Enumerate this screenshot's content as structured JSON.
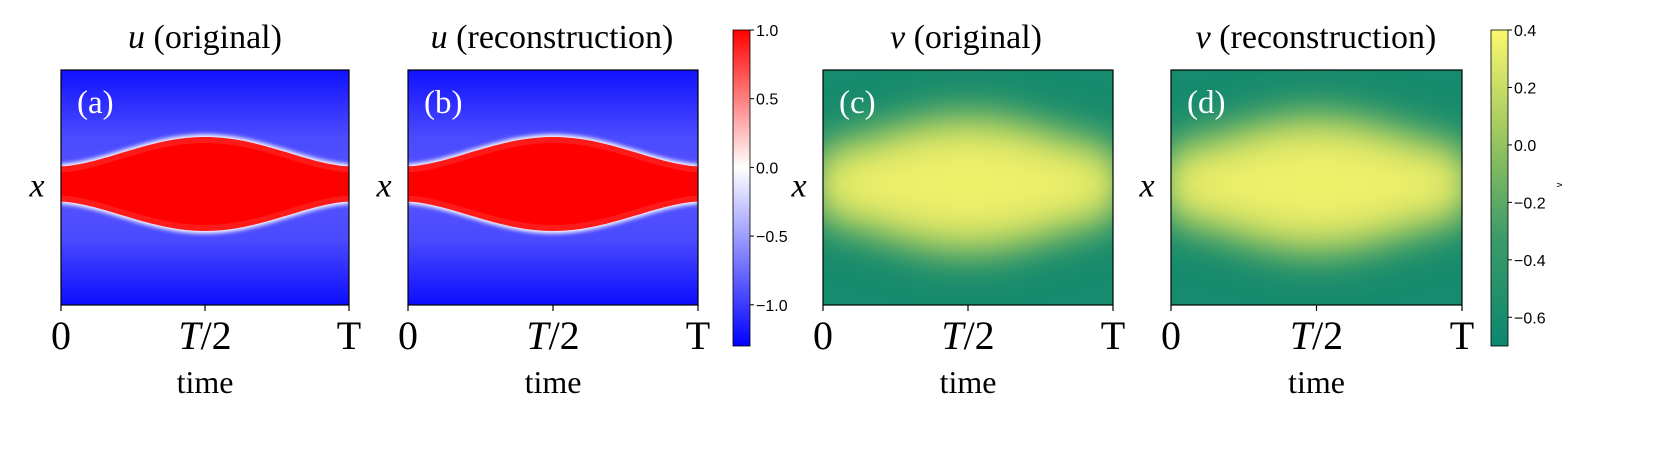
{
  "chart_data": [
    {
      "type": "heatmap",
      "panel": "a",
      "title_var": "u",
      "title_rest": " (original)",
      "panel_label": "(a)",
      "field": "u",
      "xlabel": "time",
      "ylabel": "x",
      "xticks": [
        "0",
        "T/2",
        "T"
      ],
      "colorbar": "u",
      "description_values": {
        "background": -1.1,
        "band": 1.0
      }
    },
    {
      "type": "heatmap",
      "panel": "b",
      "title_var": "u",
      "title_rest": " (reconstruction)",
      "panel_label": "(b)",
      "field": "u",
      "xlabel": "time",
      "ylabel": "x",
      "xticks": [
        "0",
        "T/2",
        "T"
      ],
      "colorbar": "u"
    },
    {
      "type": "heatmap",
      "panel": "c",
      "title_var": "v",
      "title_rest": " (original)",
      "panel_label": "(c)",
      "field": "v",
      "xlabel": "time",
      "ylabel": "x",
      "xticks": [
        "0",
        "T/2",
        "T"
      ],
      "colorbar": "v"
    },
    {
      "type": "heatmap",
      "panel": "d",
      "title_var": "v",
      "title_rest": " (reconstruction)",
      "panel_label": "(d)",
      "field": "v",
      "xlabel": "time",
      "ylabel": "x",
      "xticks": [
        "0",
        "T/2",
        "T"
      ],
      "colorbar": "v"
    }
  ],
  "colorbars": {
    "u": {
      "range": [
        -1.3,
        1.0
      ],
      "ticks": [
        1.0,
        0.5,
        0.0,
        -0.5,
        -1.0
      ],
      "tick_labels": [
        "1.0",
        "0.5",
        "0.0",
        "−0.5",
        "−1.0"
      ],
      "colors": {
        "low": "#0000ff",
        "mid": "#ffffff",
        "high": "#ff0000"
      },
      "label": ""
    },
    "v": {
      "range": [
        -0.7,
        0.4
      ],
      "ticks": [
        0.4,
        0.2,
        0.0,
        -0.2,
        -0.4,
        -0.6
      ],
      "tick_labels": [
        "0.4",
        "0.2",
        "0.0",
        "−0.2",
        "−0.4",
        "−0.6"
      ],
      "colors": {
        "low": "#0e8a6d",
        "mid": "#7dba62",
        "high": "#f6f66c"
      },
      "label": "v"
    }
  }
}
